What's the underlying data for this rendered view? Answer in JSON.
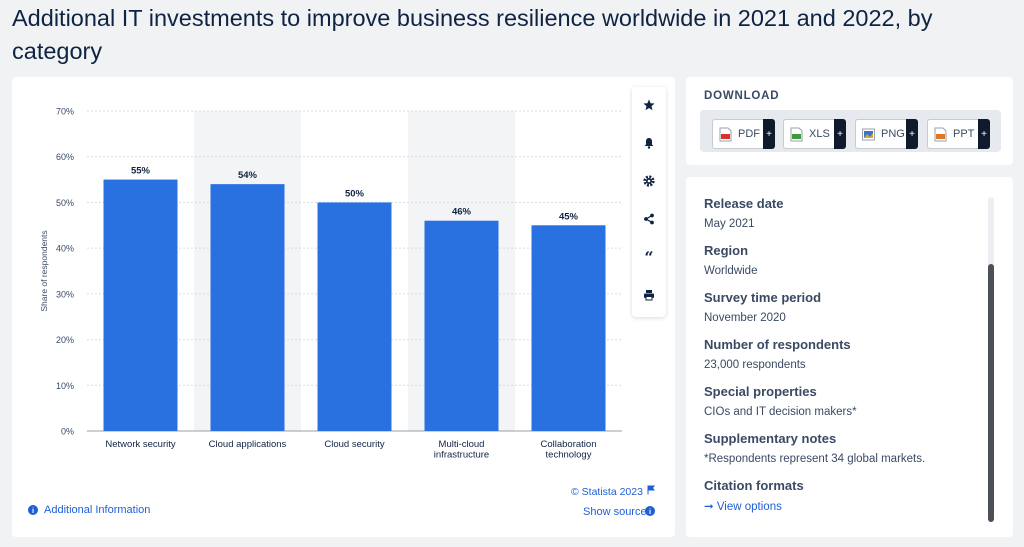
{
  "title": "Additional IT investments to improve business resilience worldwide in 2021 and 2022, by category",
  "chart_data": {
    "type": "bar",
    "categories": [
      [
        "Network security"
      ],
      [
        "Cloud applications"
      ],
      [
        "Cloud security"
      ],
      [
        "Multi-cloud",
        "infrastructure"
      ],
      [
        "Collaboration",
        "technology"
      ]
    ],
    "values": [
      55,
      54,
      50,
      46,
      45
    ],
    "value_labels": [
      "55%",
      "54%",
      "50%",
      "46%",
      "45%"
    ],
    "ylabel": "Share of respondents",
    "yticks": [
      "0%",
      "10%",
      "20%",
      "30%",
      "40%",
      "50%",
      "60%",
      "70%"
    ],
    "ylim": [
      0,
      70
    ],
    "bar_color": "#2970e0",
    "grid": true,
    "shaded_categories": [
      1,
      3
    ]
  },
  "chart_footer": {
    "copyright": "© Statista 2023",
    "show_source": "Show source",
    "additional_info": "Additional Information"
  },
  "tools": [
    {
      "name": "favorite-star-icon",
      "glyph": "★"
    },
    {
      "name": "notification-bell-icon",
      "glyph": "bell"
    },
    {
      "name": "settings-gear-icon",
      "glyph": "gear"
    },
    {
      "name": "share-icon",
      "glyph": "share"
    },
    {
      "name": "citation-quote-icon",
      "glyph": "“"
    },
    {
      "name": "print-icon",
      "glyph": "print"
    }
  ],
  "download": {
    "title": "DOWNLOAD",
    "buttons": [
      {
        "label": "PDF",
        "color": "#d9342b"
      },
      {
        "label": "XLS",
        "color": "#3e9b3a"
      },
      {
        "label": "PNG",
        "color": "#3b73c9"
      },
      {
        "label": "PPT",
        "color": "#e0762a"
      }
    ]
  },
  "meta": {
    "release_date": {
      "label": "Release date",
      "value": "May 2021"
    },
    "region": {
      "label": "Region",
      "value": "Worldwide"
    },
    "survey_period": {
      "label": "Survey time period",
      "value": "November 2020"
    },
    "respondents": {
      "label": "Number of respondents",
      "value": "23,000 respondents"
    },
    "special": {
      "label": "Special properties",
      "value": "CIOs and IT decision makers*"
    },
    "notes": {
      "label": "Supplementary notes",
      "value": "*Respondents represent 34 global markets."
    },
    "citation": {
      "label": "Citation formats",
      "link": "View options"
    }
  }
}
